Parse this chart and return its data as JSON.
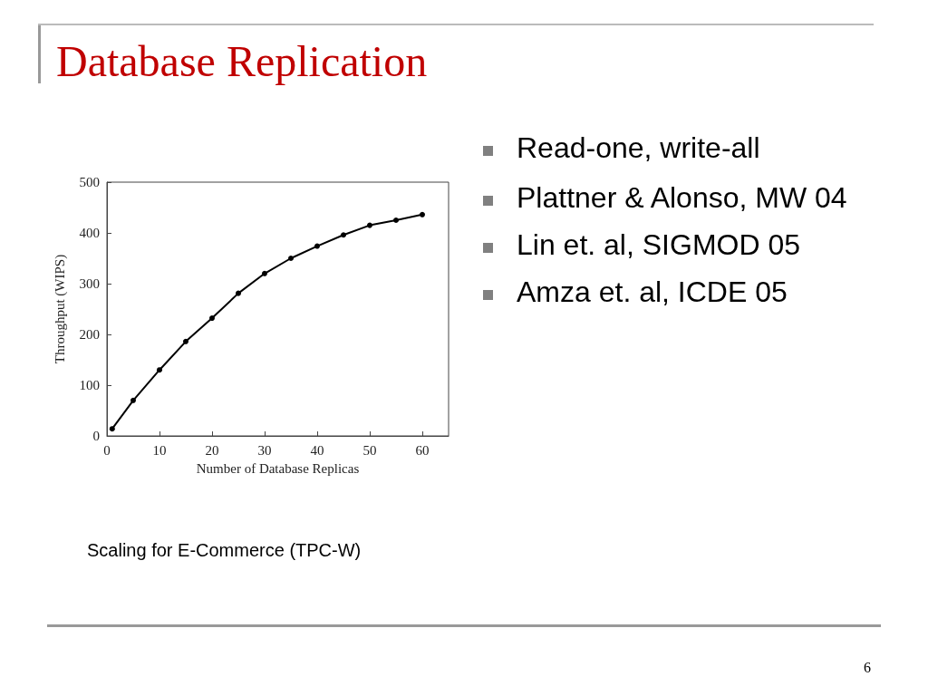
{
  "chart_data": {
    "type": "line",
    "title": "Database Replication",
    "xlabel": "Number of Database Replicas",
    "ylabel": "Throughput (WIPS)",
    "x": [
      1,
      5,
      10,
      15,
      20,
      25,
      30,
      35,
      40,
      45,
      50,
      55,
      60
    ],
    "series": [
      {
        "color": "#000000",
        "values": [
          14,
          70,
          130,
          186,
          232,
          281,
          320,
          350,
          374,
          396,
          415,
          425,
          436
        ]
      }
    ],
    "xlim": [
      0,
      65
    ],
    "xticks": [
      0,
      10,
      20,
      30,
      40,
      50,
      60
    ],
    "ylim": [
      0,
      500
    ],
    "yticks": [
      0,
      100,
      200,
      300,
      400,
      500
    ],
    "grid": false,
    "marker": "circle",
    "line_style": "solid",
    "annotations": [
      "Read-one, write-all",
      "Plattner & Alonso, MW 04",
      "Lin et. al, SIGMOD 05",
      "Amza et. al, ICDE 05",
      "Scaling for E-Commerce (TPC-W)",
      "6"
    ]
  }
}
